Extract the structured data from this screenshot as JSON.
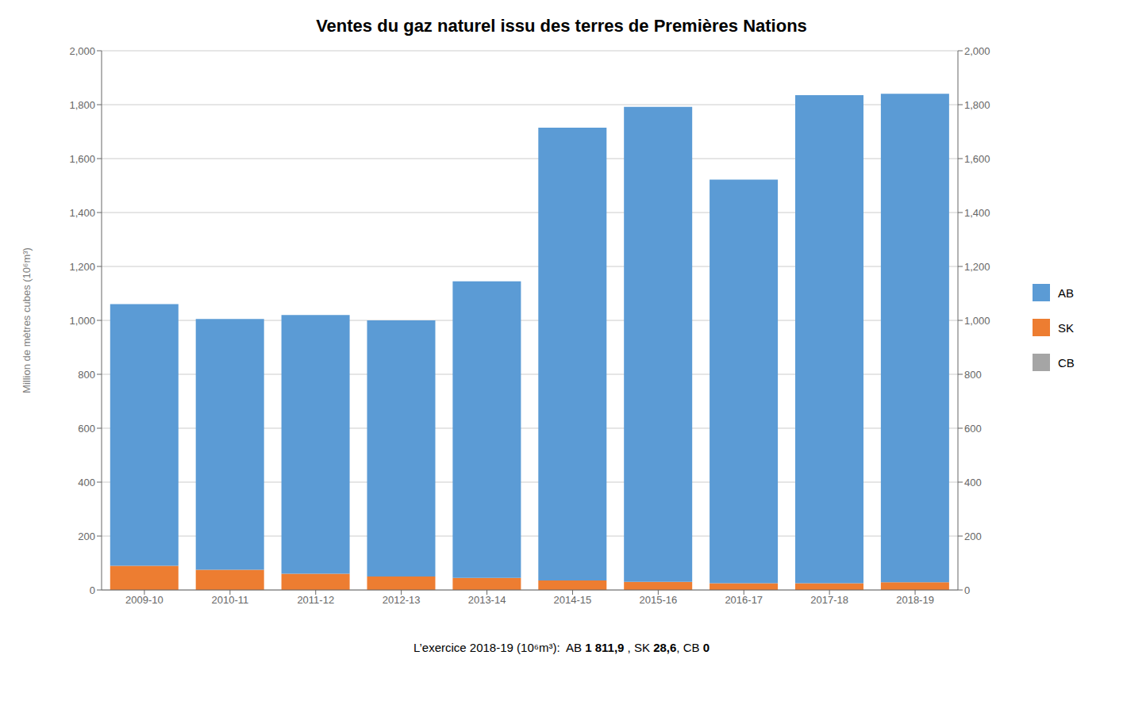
{
  "chart_data": {
    "type": "bar",
    "title": "Ventes du gaz naturel issu des terres de Premières Nations",
    "ylabel": "Million de mètres cubes (10⁶m³)",
    "categories": [
      "2009-10",
      "2010-11",
      "2011-12",
      "2012-13",
      "2013-14",
      "2014-15",
      "2015-16",
      "2016-17",
      "2017-18",
      "2018-19"
    ],
    "series": [
      {
        "name": "AB",
        "color": "#5B9BD5",
        "values": [
          970,
          930,
          960,
          950,
          1100,
          1680,
          1762,
          1497,
          1810,
          1811.9
        ]
      },
      {
        "name": "SK",
        "color": "#ED7D31",
        "values": [
          90,
          75,
          60,
          50,
          45,
          35,
          30,
          25,
          25,
          28.6
        ]
      },
      {
        "name": "CB",
        "color": "#A5A5A5",
        "values": [
          0,
          0,
          0,
          0,
          0,
          0,
          0,
          0,
          0,
          0
        ]
      }
    ],
    "stacked": true,
    "ylim": [
      0,
      2000
    ],
    "yticks": [
      0,
      200,
      400,
      600,
      800,
      {
        "value": 1000,
        "label": "1,000"
      },
      {
        "value": 1200,
        "label": "1,200"
      },
      {
        "value": 1400,
        "label": "1,400"
      },
      {
        "value": 1600,
        "label": "1,600"
      },
      {
        "value": 1800,
        "label": "1,800"
      },
      {
        "value": 2000,
        "label": "2,000"
      }
    ],
    "y2lim": [
      0,
      2000
    ],
    "y2ticks": [
      0,
      200,
      400,
      600,
      800,
      {
        "value": 1000,
        "label": "1,000"
      },
      {
        "value": 1200,
        "label": "1,200"
      },
      {
        "value": 1400,
        "label": "1,400"
      },
      {
        "value": 1600,
        "label": "1,600"
      },
      {
        "value": 1800,
        "label": "1,800"
      },
      {
        "value": 2000,
        "label": "2,000"
      }
    ],
    "grid": true,
    "legend": "right",
    "annotations": [
      {
        "text": "L’exercice 2018-19 (10⁶m³):  AB ",
        "bold": false
      },
      {
        "text": "1 811,9",
        "bold": true
      },
      {
        "text": " , SK ",
        "bold": false
      },
      {
        "text": "28,6",
        "bold": true
      },
      {
        "text": ", CB ",
        "bold": false
      },
      {
        "text": "0",
        "bold": true
      }
    ]
  }
}
